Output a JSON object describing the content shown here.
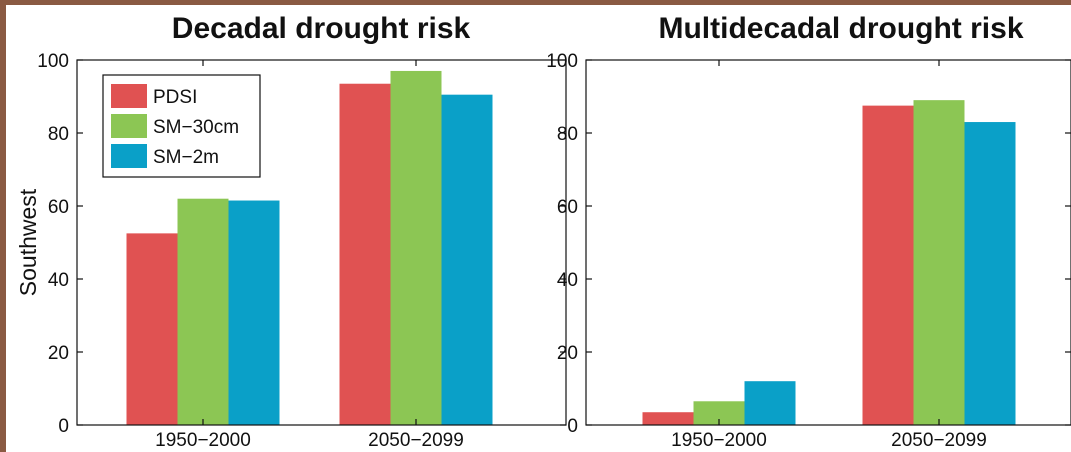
{
  "colors": {
    "PDSI": "#e05252",
    "SM-30cm": "#8cc654",
    "SM-2m": "#0aa0c8",
    "frame": "#8a5a43"
  },
  "chart_data": [
    {
      "type": "bar",
      "title": "Decadal drought risk",
      "ylabel": "Southwest",
      "xlabel": "",
      "ylim": [
        0,
        100
      ],
      "yticks": [
        0,
        20,
        40,
        60,
        80,
        100
      ],
      "categories": [
        "1950−2000",
        "2050−2099"
      ],
      "legend": "top-left",
      "series": [
        {
          "name": "PDSI",
          "values": [
            52.5,
            93.5
          ]
        },
        {
          "name": "SM−30cm",
          "values": [
            62,
            97
          ]
        },
        {
          "name": "SM−2m",
          "values": [
            61.5,
            90.5
          ]
        }
      ]
    },
    {
      "type": "bar",
      "title": "Multidecadal drought risk",
      "ylabel": "",
      "xlabel": "",
      "ylim": [
        0,
        100
      ],
      "yticks": [
        0,
        20,
        40,
        60,
        80,
        100
      ],
      "categories": [
        "1950−2000",
        "2050−2099"
      ],
      "legend": "none",
      "series": [
        {
          "name": "PDSI",
          "values": [
            3.5,
            87.5
          ]
        },
        {
          "name": "SM−30cm",
          "values": [
            6.5,
            89
          ]
        },
        {
          "name": "SM−2m",
          "values": [
            12,
            83
          ]
        }
      ]
    }
  ]
}
